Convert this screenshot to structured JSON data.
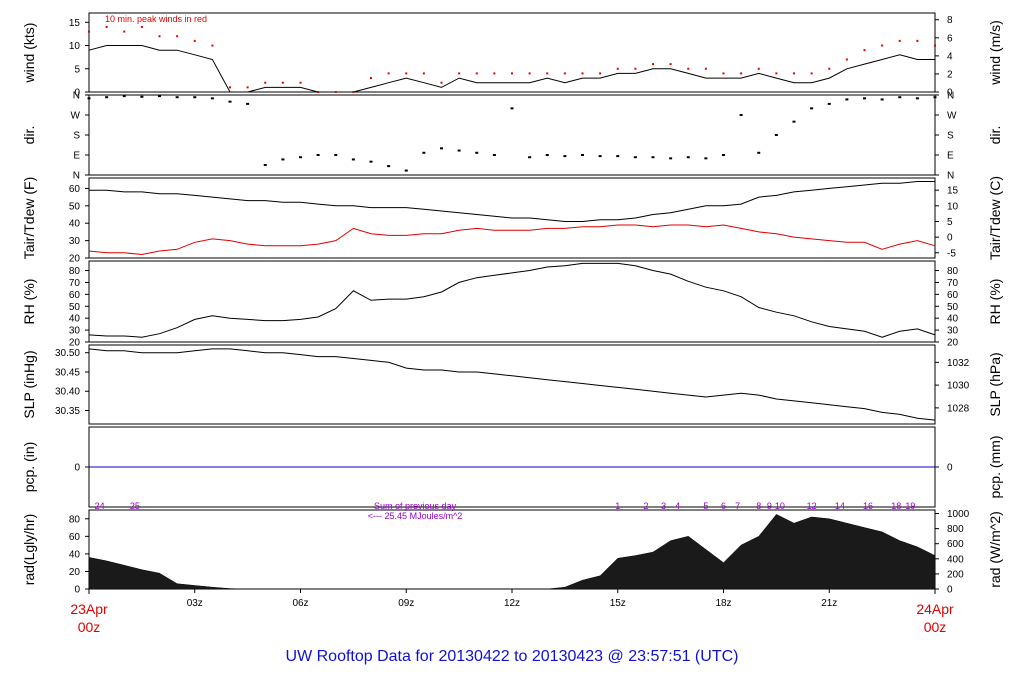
{
  "footer": "UW Rooftop Data for 20130422  to  20130423 @ 23:57:51  (UTC)",
  "date_start": {
    "line1": "23Apr",
    "line2": "00z"
  },
  "date_end": {
    "line1": "24Apr",
    "line2": "00z"
  },
  "colors": {
    "axis": "#000000",
    "dew": "#e00000",
    "precip": "#0000cc",
    "radnote": "#9900cc",
    "date": "#e00000"
  },
  "chart_data": [
    {
      "type": "line",
      "name": "wind",
      "ylabel": "wind (kts)",
      "ylabel_right": "wind (m/s)",
      "annotation": "10 min. peak winds in red",
      "ylim": [
        0,
        17
      ],
      "yticks": [
        0,
        5,
        10,
        15
      ],
      "yticks_right": [
        0,
        2,
        4,
        6,
        8
      ],
      "x": [
        0,
        0.5,
        1,
        1.5,
        2,
        2.5,
        3,
        3.5,
        4,
        4.5,
        5,
        5.5,
        6,
        6.5,
        7,
        7.5,
        8,
        8.5,
        9,
        9.5,
        10,
        10.5,
        11,
        11.5,
        12,
        12.5,
        13,
        13.5,
        14,
        14.5,
        15,
        15.5,
        16,
        16.5,
        17,
        17.5,
        18,
        18.5,
        19,
        19.5,
        20,
        20.5,
        21,
        21.5,
        22,
        22.5,
        23,
        23.5,
        24
      ],
      "series": [
        {
          "name": "wind",
          "values": [
            9,
            10,
            10,
            10,
            9,
            9,
            8,
            7,
            0,
            0,
            1,
            1,
            1,
            0,
            0,
            0,
            1,
            2,
            3,
            2,
            1,
            3,
            2,
            2,
            2,
            2,
            3,
            2,
            3,
            3,
            4,
            4,
            5,
            5,
            4,
            3,
            3,
            3,
            4,
            3,
            2,
            2,
            3,
            5,
            6,
            7,
            8,
            7,
            7
          ]
        },
        {
          "name": "peak",
          "values": [
            13,
            14,
            13,
            14,
            12,
            12,
            11,
            10,
            1,
            1,
            2,
            2,
            2,
            0,
            0,
            0,
            3,
            4,
            4,
            4,
            2,
            4,
            4,
            4,
            4,
            4,
            4,
            4,
            4,
            4,
            5,
            5,
            6,
            6,
            5,
            5,
            4,
            4,
            5,
            4,
            4,
            4,
            5,
            7,
            9,
            10,
            11,
            11,
            10
          ]
        }
      ]
    },
    {
      "type": "scatter",
      "name": "direction",
      "ylabel": "dir.",
      "ylabel_right": "dir.",
      "yticks": [
        "N",
        "E",
        "S",
        "W",
        "N"
      ],
      "ylim": [
        0,
        360
      ],
      "x": [
        0,
        0.5,
        1,
        1.5,
        2,
        2.5,
        3,
        3.5,
        4,
        4.5,
        5,
        5.5,
        6,
        6.5,
        7,
        7.5,
        8,
        8.5,
        9,
        9.5,
        10,
        10.5,
        11,
        11.5,
        12,
        12.5,
        13,
        13.5,
        14,
        14.5,
        15,
        15.5,
        16,
        16.5,
        17,
        17.5,
        18,
        18.5,
        19,
        19.5,
        20,
        20.5,
        21,
        21.5,
        22,
        22.5,
        23,
        23.5,
        24
      ],
      "values": [
        345,
        350,
        355,
        352,
        355,
        350,
        350,
        345,
        330,
        320,
        45,
        70,
        80,
        90,
        90,
        70,
        60,
        40,
        20,
        100,
        120,
        110,
        100,
        90,
        300,
        80,
        90,
        85,
        90,
        85,
        85,
        80,
        80,
        75,
        80,
        75,
        90,
        270,
        100,
        180,
        240,
        300,
        320,
        340,
        345,
        340,
        350,
        345,
        350
      ]
    },
    {
      "type": "line",
      "name": "temperature",
      "ylabel": "Tair/Tdew (F)",
      "ylabel_right": "Tair/Tdew (C)",
      "ylim": [
        20,
        66
      ],
      "yticks": [
        20,
        30,
        40,
        50,
        60
      ],
      "yticks_right": [
        -5,
        0,
        5,
        10,
        15
      ],
      "x": [
        0,
        0.5,
        1,
        1.5,
        2,
        2.5,
        3,
        3.5,
        4,
        4.5,
        5,
        5.5,
        6,
        6.5,
        7,
        7.5,
        8,
        8.5,
        9,
        9.5,
        10,
        10.5,
        11,
        11.5,
        12,
        12.5,
        13,
        13.5,
        14,
        14.5,
        15,
        15.5,
        16,
        16.5,
        17,
        17.5,
        18,
        18.5,
        19,
        19.5,
        20,
        20.5,
        21,
        21.5,
        22,
        22.5,
        23,
        23.5,
        24
      ],
      "series": [
        {
          "name": "Tair",
          "values": [
            59,
            59,
            58,
            58,
            57,
            57,
            56,
            55,
            54,
            53,
            53,
            52,
            52,
            51,
            50,
            50,
            49,
            49,
            49,
            48,
            47,
            46,
            45,
            44,
            43,
            43,
            42,
            41,
            41,
            42,
            42,
            43,
            45,
            46,
            48,
            50,
            50,
            51,
            55,
            56,
            58,
            59,
            60,
            61,
            62,
            63,
            63,
            64,
            64
          ]
        },
        {
          "name": "Tdew",
          "values": [
            24,
            23,
            23,
            22,
            24,
            25,
            29,
            31,
            30,
            28,
            27,
            27,
            27,
            28,
            30,
            37,
            34,
            33,
            33,
            34,
            34,
            36,
            37,
            36,
            36,
            36,
            37,
            37,
            38,
            38,
            39,
            39,
            38,
            39,
            39,
            38,
            39,
            37,
            35,
            34,
            32,
            31,
            30,
            29,
            29,
            25,
            28,
            30,
            27
          ]
        }
      ]
    },
    {
      "type": "line",
      "name": "humidity",
      "ylabel": "RH (%)",
      "ylim": [
        20,
        88
      ],
      "yticks": [
        20,
        30,
        40,
        50,
        60,
        70,
        80
      ],
      "yticks_right": [
        20,
        30,
        40,
        50,
        60,
        70,
        80
      ],
      "x": [
        0,
        0.5,
        1,
        1.5,
        2,
        2.5,
        3,
        3.5,
        4,
        4.5,
        5,
        5.5,
        6,
        6.5,
        7,
        7.5,
        8,
        8.5,
        9,
        9.5,
        10,
        10.5,
        11,
        11.5,
        12,
        12.5,
        13,
        13.5,
        14,
        14.5,
        15,
        15.5,
        16,
        16.5,
        17,
        17.5,
        18,
        18.5,
        19,
        19.5,
        20,
        20.5,
        21,
        21.5,
        22,
        22.5,
        23,
        23.5,
        24
      ],
      "values": [
        26,
        25,
        25,
        24,
        27,
        32,
        39,
        42,
        40,
        39,
        38,
        38,
        39,
        41,
        48,
        63,
        55,
        56,
        56,
        58,
        62,
        70,
        74,
        76,
        78,
        80,
        83,
        84,
        86,
        86,
        86,
        84,
        80,
        77,
        71,
        66,
        63,
        58,
        49,
        45,
        42,
        37,
        33,
        31,
        29,
        24,
        29,
        31,
        26
      ]
    },
    {
      "type": "line",
      "name": "pressure",
      "ylabel": "SLP (inHg)",
      "ylabel_right": "SLP (hPa)",
      "ylim": [
        30.315,
        30.52
      ],
      "yticks": [
        30.35,
        30.4,
        30.45,
        30.5
      ],
      "yticks_right": [
        1028,
        1030,
        1032
      ],
      "x": [
        0,
        0.5,
        1,
        1.5,
        2,
        2.5,
        3,
        3.5,
        4,
        4.5,
        5,
        5.5,
        6,
        6.5,
        7,
        7.5,
        8,
        8.5,
        9,
        9.5,
        10,
        10.5,
        11,
        11.5,
        12,
        12.5,
        13,
        13.5,
        14,
        14.5,
        15,
        15.5,
        16,
        16.5,
        17,
        17.5,
        18,
        18.5,
        19,
        19.5,
        20,
        20.5,
        21,
        21.5,
        22,
        22.5,
        23,
        23.5,
        24
      ],
      "values": [
        30.51,
        30.505,
        30.505,
        30.5,
        30.5,
        30.5,
        30.505,
        30.51,
        30.51,
        30.505,
        30.5,
        30.5,
        30.495,
        30.49,
        30.49,
        30.485,
        30.48,
        30.475,
        30.46,
        30.455,
        30.455,
        30.45,
        30.45,
        30.445,
        30.44,
        30.435,
        30.43,
        30.425,
        30.42,
        30.415,
        30.41,
        30.405,
        30.4,
        30.395,
        30.39,
        30.385,
        30.39,
        30.395,
        30.39,
        30.38,
        30.375,
        30.37,
        30.365,
        30.36,
        30.355,
        30.345,
        30.34,
        30.33,
        30.325
      ]
    },
    {
      "type": "line",
      "name": "precipitation",
      "ylabel": "pcp. (in)",
      "ylabel_right": "pcp. (mm)",
      "ylim": [
        -1,
        1
      ],
      "yticks": [
        0
      ],
      "yticks_right": [
        0
      ],
      "x": [
        0,
        24
      ],
      "values": [
        0,
        0
      ]
    },
    {
      "type": "area",
      "name": "radiation",
      "ylabel": "rad(Lgly/hr)",
      "ylabel_right": "rad (W/m^2)",
      "ylim": [
        0,
        90
      ],
      "yticks": [
        0,
        20,
        40,
        60,
        80
      ],
      "yticks_right": [
        0,
        200,
        400,
        600,
        800,
        1000
      ],
      "note_line1": "Sum of previous day",
      "note_line2": "<--- 25.45 MJoules/m^2",
      "hour_labels": [
        "24",
        "25",
        "1",
        "2",
        "3",
        "4",
        "5",
        "6",
        "7",
        "8",
        "9",
        "10",
        "12",
        "14",
        "16",
        "18",
        "19"
      ],
      "hour_label_x": [
        0.3,
        1.3,
        15.0,
        15.8,
        16.3,
        16.7,
        17.5,
        18.0,
        18.4,
        19.0,
        19.3,
        19.6,
        20.5,
        21.3,
        22.1,
        22.9,
        23.3
      ],
      "x": [
        0,
        0.5,
        1,
        1.5,
        2,
        2.5,
        3,
        3.5,
        4,
        4.5,
        5,
        5.5,
        6,
        6.5,
        7,
        7.5,
        8,
        8.5,
        9,
        9.5,
        10,
        10.5,
        11,
        11.5,
        12,
        12.5,
        13,
        13.5,
        14,
        14.5,
        15,
        15.5,
        16,
        16.5,
        17,
        17.5,
        18,
        18.5,
        19,
        19.5,
        20,
        20.5,
        21,
        21.5,
        22,
        22.5,
        23,
        23.5,
        24
      ],
      "values": [
        36,
        32,
        27,
        22,
        18,
        6,
        4,
        2,
        0.5,
        0,
        0,
        0,
        0,
        0,
        0,
        0,
        0,
        0,
        0,
        0,
        0,
        0,
        0,
        0,
        0,
        0,
        0,
        2,
        10,
        15,
        35,
        38,
        42,
        55,
        60,
        45,
        30,
        50,
        60,
        85,
        75,
        82,
        80,
        75,
        70,
        65,
        55,
        48,
        38
      ]
    }
  ],
  "x_axis": {
    "ticks": [
      "03z",
      "06z",
      "09z",
      "12z",
      "15z",
      "18z",
      "21z"
    ],
    "tick_hours": [
      3,
      6,
      9,
      12,
      15,
      18,
      21
    ]
  }
}
